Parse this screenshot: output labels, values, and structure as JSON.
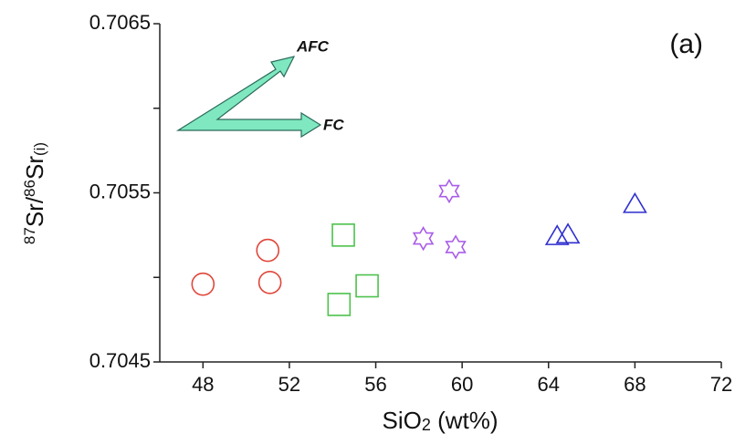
{
  "chart_data": {
    "type": "scatter",
    "xlabel": [
      "SiO",
      "2",
      " (wt%)"
    ],
    "ylabel": [
      "87",
      "Sr/",
      "86",
      "Sr",
      "(i)"
    ],
    "annotations": [
      "(a)",
      "AFC",
      "FC"
    ],
    "xlim": [
      46,
      72
    ],
    "xticks": [
      48,
      52,
      56,
      60,
      64,
      68,
      72
    ],
    "ylim": [
      0.7045,
      0.7065
    ],
    "yticks": [
      0.7045,
      0.7055,
      0.7065
    ],
    "yminor": [
      0.705,
      0.706
    ],
    "series": [
      {
        "color": "#e0463a",
        "marker": "circle",
        "x": [
          48,
          51,
          51.1
        ],
        "values": [
          0.70496,
          0.70516,
          0.70497
        ]
      },
      {
        "color": "#4cc24c",
        "marker": "square",
        "x": [
          54.5,
          55.6,
          54.3
        ],
        "values": [
          0.70525,
          0.70495,
          0.70484
        ]
      },
      {
        "color": "#a95ce8",
        "marker": "star",
        "x": [
          59.4,
          58.2,
          59.7
        ],
        "values": [
          0.70551,
          0.70523,
          0.70518
        ]
      },
      {
        "color": "#2f2fd0",
        "marker": "triangle",
        "x": [
          68,
          64.4,
          64.9
        ],
        "values": [
          0.70543,
          0.70524,
          0.70525
        ]
      }
    ]
  }
}
